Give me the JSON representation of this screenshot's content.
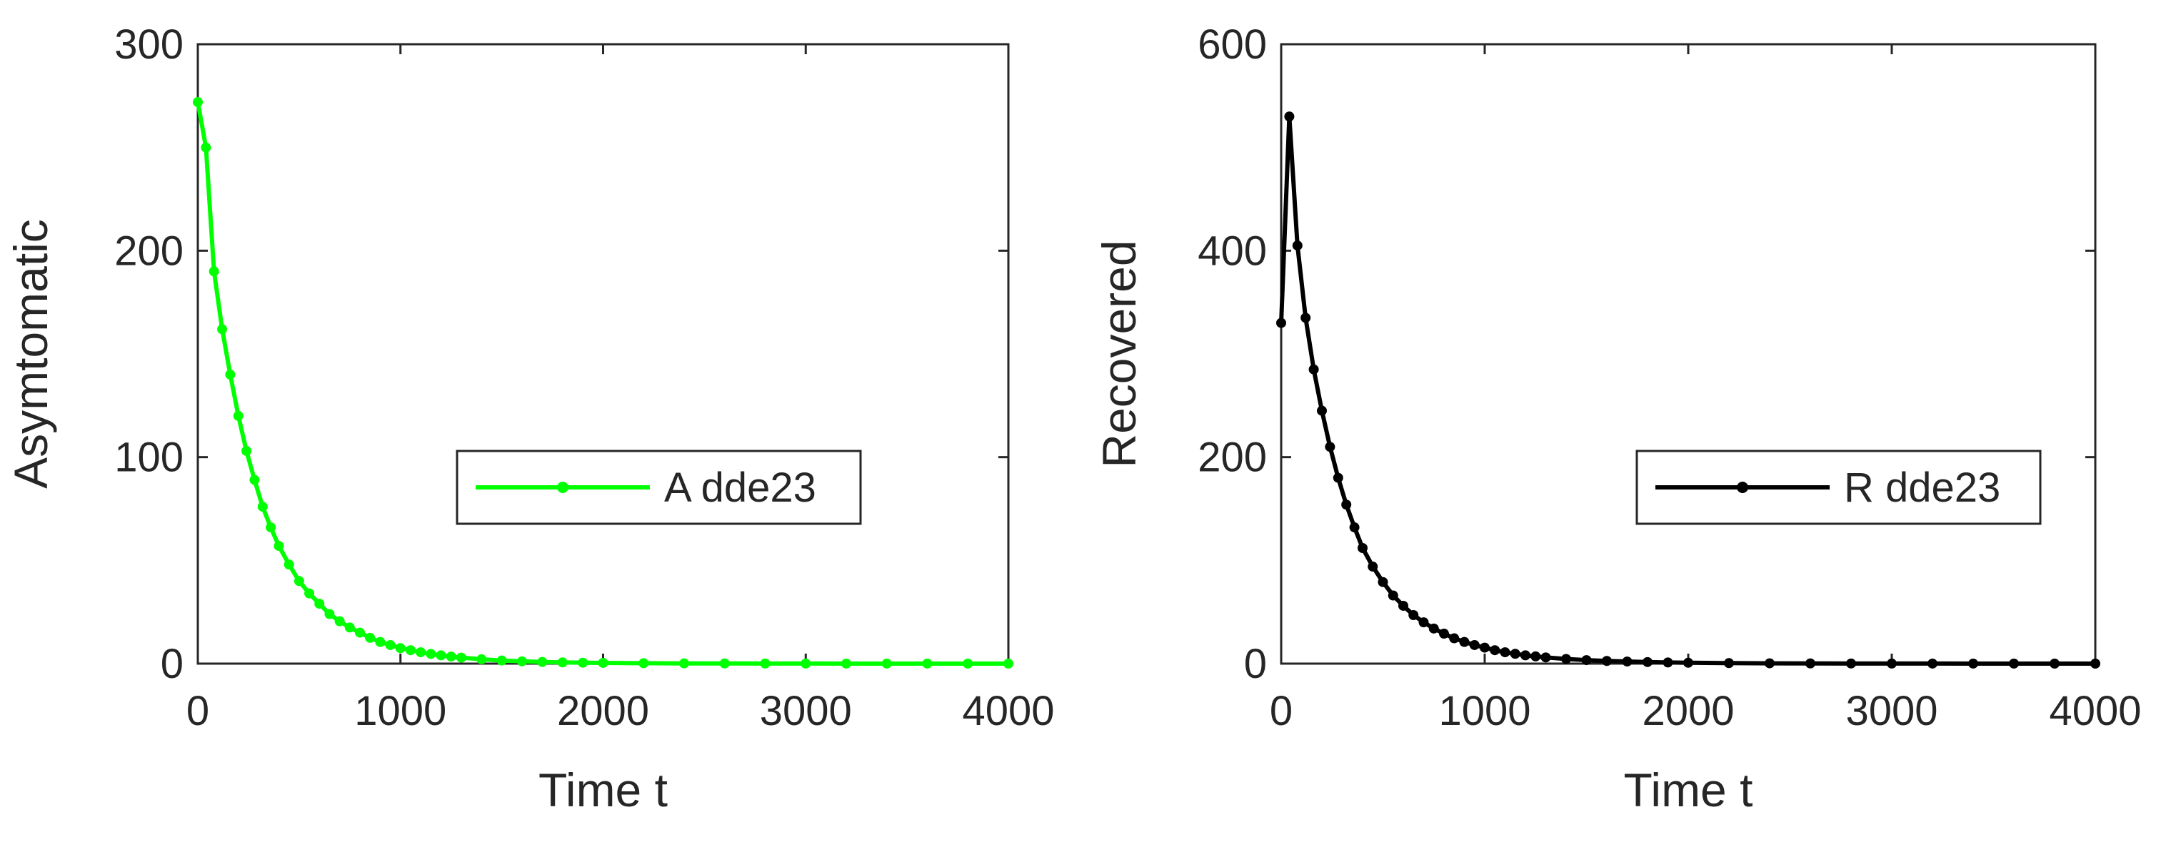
{
  "colors": {
    "asymptomatic": "#00ff00",
    "recovered": "#000000",
    "axes": "#262626",
    "background": "#ffffff"
  },
  "chart_data": [
    {
      "type": "line",
      "xlabel": "Time t",
      "ylabel": "Asymtomatic",
      "xlim": [
        0,
        4000
      ],
      "ylim": [
        0,
        300
      ],
      "xticks": [
        0,
        1000,
        2000,
        3000,
        4000
      ],
      "yticks": [
        0,
        100,
        200,
        300
      ],
      "xtick_labels": [
        "0",
        "1000",
        "2000",
        "3000",
        "4000"
      ],
      "ytick_labels": [
        "0",
        "100",
        "200",
        "300"
      ],
      "grid": false,
      "legend": {
        "placement": "center-right",
        "entries": [
          "A dde23"
        ]
      },
      "series": [
        {
          "name": "A dde23",
          "color": "#00ff00",
          "marker": "dot",
          "x": [
            0,
            40,
            80,
            120,
            160,
            200,
            240,
            280,
            320,
            360,
            400,
            450,
            500,
            550,
            600,
            650,
            700,
            750,
            800,
            850,
            900,
            950,
            1000,
            1050,
            1100,
            1150,
            1200,
            1250,
            1300,
            1400,
            1500,
            1600,
            1700,
            1800,
            1900,
            2000,
            2200,
            2400,
            2600,
            2800,
            3000,
            3200,
            3400,
            3600,
            3800,
            4000
          ],
          "y": [
            272,
            250,
            190,
            162,
            140,
            120,
            103,
            89,
            76,
            66,
            57,
            48,
            40,
            34,
            29,
            24,
            20.5,
            17.5,
            15,
            12.5,
            10.5,
            9,
            7.5,
            6.5,
            5.5,
            4.7,
            4,
            3.4,
            2.9,
            2.1,
            1.5,
            1.1,
            0.8,
            0.6,
            0.45,
            0.35,
            0.2,
            0.12,
            0.07,
            0.04,
            0.025,
            0.015,
            0.01,
            0.006,
            0.004,
            0.002
          ]
        }
      ]
    },
    {
      "type": "line",
      "xlabel": "Time t",
      "ylabel": "Recovered",
      "xlim": [
        0,
        4000
      ],
      "ylim": [
        0,
        600
      ],
      "xticks": [
        0,
        1000,
        2000,
        3000,
        4000
      ],
      "yticks": [
        0,
        200,
        400,
        600
      ],
      "xtick_labels": [
        "0",
        "1000",
        "2000",
        "3000",
        "4000"
      ],
      "ytick_labels": [
        "0",
        "200",
        "400",
        "600"
      ],
      "grid": false,
      "legend": {
        "placement": "center-right",
        "entries": [
          "R dde23"
        ]
      },
      "series": [
        {
          "name": "R dde23",
          "color": "#000000",
          "marker": "dot",
          "x": [
            0,
            40,
            80,
            120,
            160,
            200,
            240,
            280,
            320,
            360,
            400,
            450,
            500,
            550,
            600,
            650,
            700,
            750,
            800,
            850,
            900,
            950,
            1000,
            1050,
            1100,
            1150,
            1200,
            1250,
            1300,
            1400,
            1500,
            1600,
            1700,
            1800,
            1900,
            2000,
            2200,
            2400,
            2600,
            2800,
            3000,
            3200,
            3400,
            3600,
            3800,
            4000
          ],
          "y": [
            330,
            530,
            405,
            335,
            285,
            245,
            210,
            180,
            154,
            132,
            112,
            94,
            79,
            66,
            56,
            47,
            40,
            34,
            29,
            24.5,
            21,
            18,
            15.5,
            13,
            11,
            9.5,
            8,
            7,
            6,
            4.5,
            3.4,
            2.6,
            2,
            1.5,
            1.1,
            0.85,
            0.5,
            0.3,
            0.18,
            0.1,
            0.06,
            0.035,
            0.02,
            0.012,
            0.007,
            0.004
          ]
        }
      ]
    }
  ]
}
